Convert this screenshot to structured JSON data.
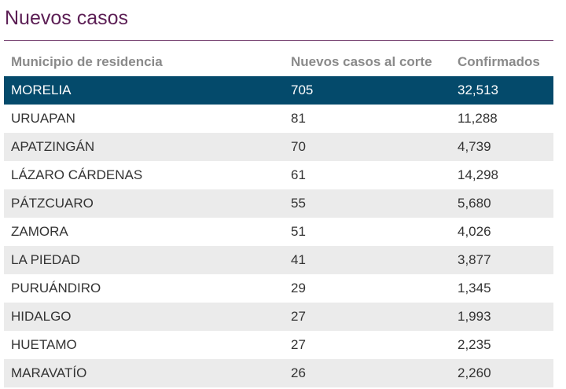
{
  "title": "Nuevos casos",
  "table": {
    "headers": [
      "Municipio de residencia",
      "Nuevos casos al corte",
      "Confirmados"
    ],
    "rows": [
      {
        "municipio": "MORELIA",
        "nuevos": "705",
        "confirmados": "32,513"
      },
      {
        "municipio": "URUAPAN",
        "nuevos": "81",
        "confirmados": "11,288"
      },
      {
        "municipio": "APATZINGÁN",
        "nuevos": "70",
        "confirmados": "4,739"
      },
      {
        "municipio": "LÁZARO CÁRDENAS",
        "nuevos": "61",
        "confirmados": "14,298"
      },
      {
        "municipio": "PÁTZCUARO",
        "nuevos": "55",
        "confirmados": "5,680"
      },
      {
        "municipio": "ZAMORA",
        "nuevos": "51",
        "confirmados": "4,026"
      },
      {
        "municipio": "LA PIEDAD",
        "nuevos": "41",
        "confirmados": "3,877"
      },
      {
        "municipio": "PURUÁNDIRO",
        "nuevos": "29",
        "confirmados": "1,345"
      },
      {
        "municipio": "HIDALGO",
        "nuevos": "27",
        "confirmados": "1,993"
      },
      {
        "municipio": "HUETAMO",
        "nuevos": "27",
        "confirmados": "2,235"
      },
      {
        "municipio": "MARAVATÍO",
        "nuevos": "26",
        "confirmados": "2,260"
      }
    ]
  },
  "colors": {
    "title": "#5c1f55",
    "highlight_row": "#044a6b",
    "alt_row": "#ebebeb",
    "header_text": "#8a8a8a"
  }
}
